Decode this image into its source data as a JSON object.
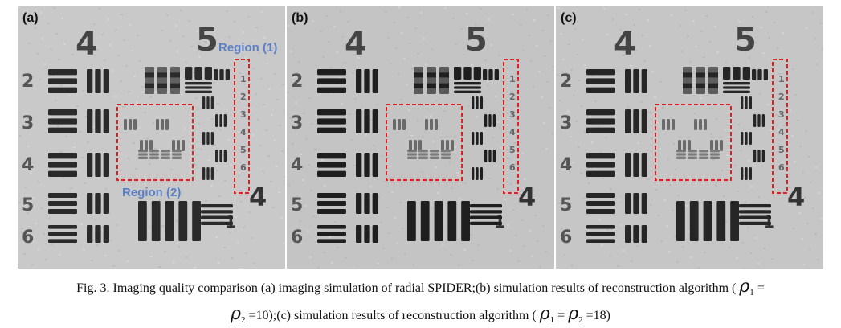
{
  "panels": [
    {
      "label": "(a)",
      "regions": [
        {
          "label": "Region (1)"
        },
        {
          "label": "Region (2)"
        }
      ]
    },
    {
      "label": "(b)",
      "regions": []
    },
    {
      "label": "(c)",
      "regions": []
    }
  ],
  "numbers": {
    "n4": "4",
    "n5": "5",
    "n4b": "4",
    "g1": "1"
  },
  "row_numbers": [
    "2",
    "3",
    "4",
    "5",
    "6"
  ],
  "group_digits": [
    "1",
    "2",
    "3",
    "4",
    "5",
    "6"
  ],
  "caption": {
    "line1_a": "Fig. 3. Imaging quality comparison (a) imaging simulation of radial SPIDER;(b) simulation results of reconstruction algorithm (",
    "rho": "ρ",
    "sub1": "1",
    "sub2": "2",
    "eq": "=",
    "line2_a": "=10);(c) simulation results of reconstruction algorithm (",
    "line2_b": "=18)"
  },
  "colors": {
    "region_box": "#e02020",
    "region_text": "#5b7fc7"
  }
}
